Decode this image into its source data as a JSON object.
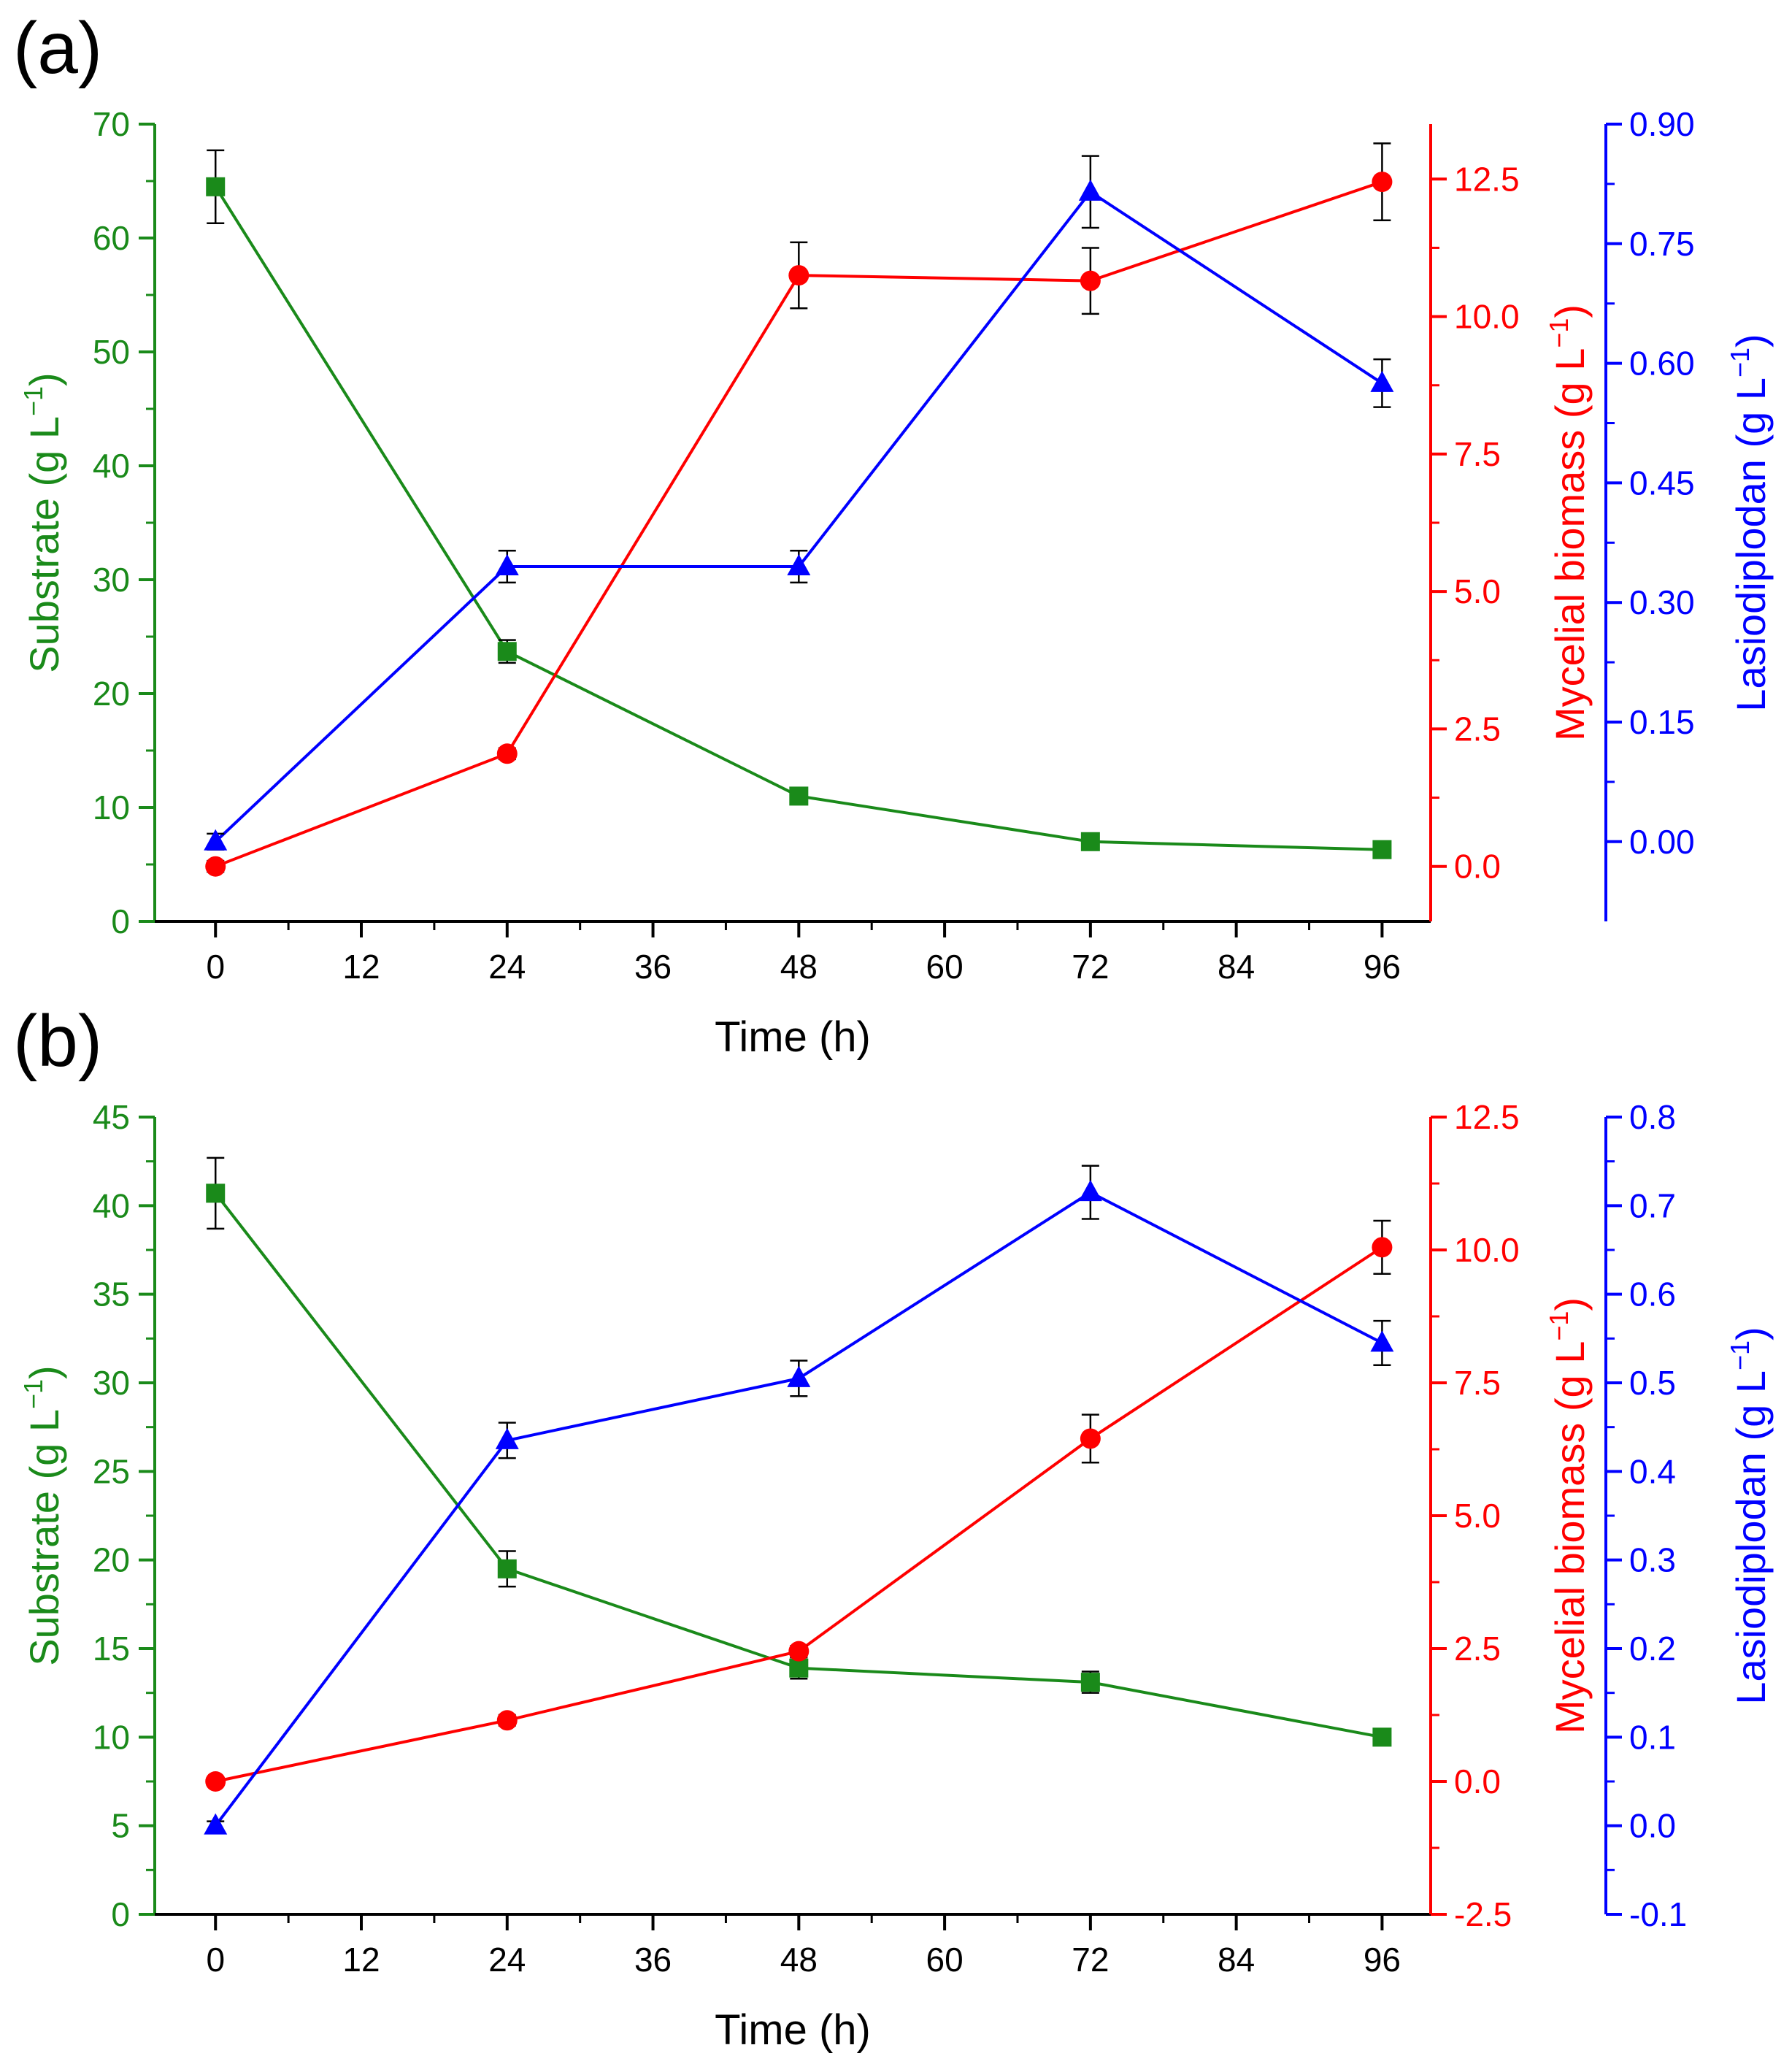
{
  "figure": {
    "background": "#ffffff"
  },
  "colors": {
    "substrate": "#1a8a1a",
    "biomass": "#ff0000",
    "lasiodiplodan": "#0000ff",
    "axis": "#000000"
  },
  "chart_data": [
    {
      "panel_label": "(a)",
      "type": "line",
      "xlabel": "Time (h)",
      "x_ticks": [
        0,
        12,
        24,
        36,
        48,
        60,
        72,
        84,
        96
      ],
      "x_tick_labels": [
        "0",
        "12",
        "24",
        "36",
        "48",
        "60",
        "72",
        "84",
        "96"
      ],
      "x": [
        0,
        24,
        48,
        72,
        96
      ],
      "axes": {
        "left": {
          "label_prefix": "Substrate (g L",
          "label_sup": "−1",
          "label_suffix": ")",
          "color": "#1a8a1a",
          "ylim": [
            0,
            70
          ],
          "ticks": [
            0,
            10,
            20,
            30,
            40,
            50,
            60,
            70
          ],
          "tick_labels": [
            "0",
            "10",
            "20",
            "30",
            "40",
            "50",
            "60",
            "70"
          ]
        },
        "right1": {
          "label_prefix": "Mycelial biomass (g L",
          "label_sup": "−1",
          "label_suffix": ")",
          "color": "#ff0000",
          "ylim": [
            -1.0,
            13.5
          ],
          "ticks": [
            0.0,
            2.5,
            5.0,
            7.5,
            10.0,
            12.5
          ],
          "tick_labels": [
            "0.0",
            "2.5",
            "5.0",
            "7.5",
            "10.0",
            "12.5"
          ]
        },
        "right2": {
          "label_prefix": "Lasiodiplodan (g L",
          "label_sup": "−1",
          "label_suffix": ")",
          "color": "#0000ff",
          "ylim": [
            -0.1,
            0.9
          ],
          "ticks": [
            0.0,
            0.15,
            0.3,
            0.45,
            0.6,
            0.75,
            0.9
          ],
          "tick_labels": [
            "0.00",
            "0.15",
            "0.30",
            "0.45",
            "0.60",
            "0.75",
            "0.90"
          ]
        }
      },
      "series": [
        {
          "name": "Substrate",
          "axis": "left",
          "marker": "square",
          "color": "#1a8a1a",
          "values": [
            64.5,
            23.7,
            11.0,
            7.0,
            6.3
          ],
          "errors": [
            3.2,
            1.0,
            0.4,
            0.4,
            0.4
          ]
        },
        {
          "name": "Mycelial biomass",
          "axis": "right1",
          "marker": "circle",
          "color": "#ff0000",
          "values": [
            0.0,
            2.05,
            10.75,
            10.65,
            12.45
          ],
          "errors": [
            0.1,
            0.1,
            0.6,
            0.6,
            0.7
          ]
        },
        {
          "name": "Lasiodiplodan",
          "axis": "right2",
          "marker": "triangle",
          "color": "#0000ff",
          "values": [
            0.0,
            0.345,
            0.345,
            0.815,
            0.575
          ],
          "errors": [
            0.01,
            0.02,
            0.02,
            0.045,
            0.03
          ]
        }
      ]
    },
    {
      "panel_label": "(b)",
      "type": "line",
      "xlabel": "Time (h)",
      "x_ticks": [
        0,
        12,
        24,
        36,
        48,
        60,
        72,
        84,
        96
      ],
      "x_tick_labels": [
        "0",
        "12",
        "24",
        "36",
        "48",
        "60",
        "72",
        "84",
        "96"
      ],
      "x": [
        0,
        24,
        48,
        72,
        96
      ],
      "axes": {
        "left": {
          "label_prefix": "Substrate (g L",
          "label_sup": "−1",
          "label_suffix": ")",
          "color": "#1a8a1a",
          "ylim": [
            0,
            45
          ],
          "ticks": [
            0,
            5,
            10,
            15,
            20,
            25,
            30,
            35,
            40,
            45
          ],
          "tick_labels": [
            "0",
            "5",
            "10",
            "15",
            "20",
            "25",
            "30",
            "35",
            "40",
            "45"
          ]
        },
        "right1": {
          "label_prefix": "Mycelial biomass (g L",
          "label_sup": "−1",
          "label_suffix": ")",
          "color": "#ff0000",
          "ylim": [
            -2.5,
            12.5
          ],
          "ticks": [
            -2.5,
            0.0,
            2.5,
            5.0,
            7.5,
            10.0,
            12.5
          ],
          "tick_labels": [
            "-2.5",
            "0.0",
            "2.5",
            "5.0",
            "7.5",
            "10.0",
            "12.5"
          ]
        },
        "right2": {
          "label_prefix": "Lasiodiplodan (g L",
          "label_sup": "−1",
          "label_suffix": ")",
          "color": "#0000ff",
          "ylim": [
            -0.1,
            0.8
          ],
          "ticks": [
            -0.1,
            0.0,
            0.1,
            0.2,
            0.3,
            0.4,
            0.5,
            0.6,
            0.7,
            0.8
          ],
          "tick_labels": [
            "-0.1",
            "0.0",
            "0.1",
            "0.2",
            "0.3",
            "0.4",
            "0.5",
            "0.6",
            "0.7",
            "0.8"
          ]
        }
      },
      "series": [
        {
          "name": "Substrate",
          "axis": "left",
          "marker": "square",
          "color": "#1a8a1a",
          "values": [
            40.7,
            19.5,
            13.9,
            13.1,
            10.0
          ],
          "errors": [
            2.0,
            1.0,
            0.6,
            0.6,
            0.3
          ]
        },
        {
          "name": "Mycelial biomass",
          "axis": "right1",
          "marker": "circle",
          "color": "#ff0000",
          "values": [
            0.0,
            1.15,
            2.45,
            6.45,
            10.05
          ],
          "errors": [
            0.05,
            0.1,
            0.1,
            0.45,
            0.5
          ]
        },
        {
          "name": "Lasiodiplodan",
          "axis": "right2",
          "marker": "triangle",
          "color": "#0000ff",
          "values": [
            0.0,
            0.435,
            0.505,
            0.715,
            0.545
          ],
          "errors": [
            0.005,
            0.02,
            0.02,
            0.03,
            0.025
          ]
        }
      ]
    }
  ]
}
